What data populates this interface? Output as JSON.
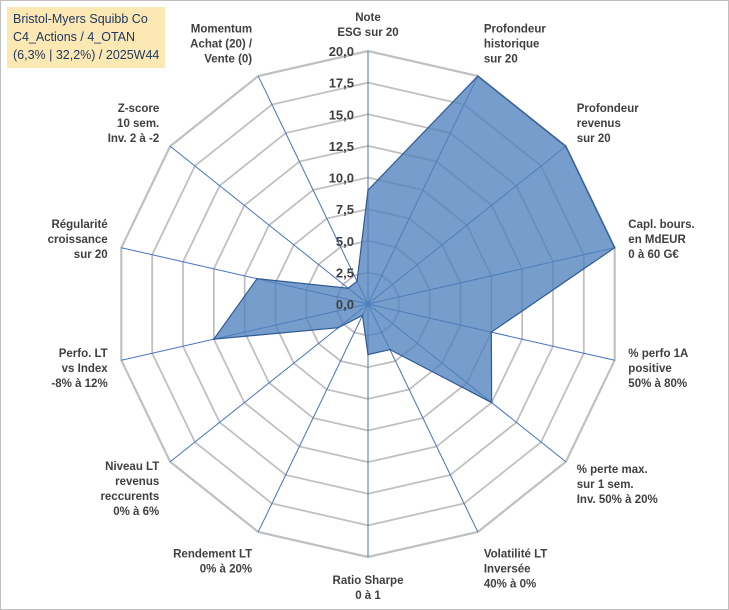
{
  "title": {
    "line1": "Bristol-Myers Squibb Co",
    "line2": "C4_Actions / 4_OTAN",
    "line3": "(6,3% | 32,2%) / 2025W44"
  },
  "colors": {
    "fill": "#4f81bd",
    "stroke": "#2e5b94",
    "spoke": "#4472c4",
    "grid": "#c0c0c0",
    "title_bg": "#fce8b2",
    "title_text": "#1f3864"
  },
  "chart_data": {
    "type": "radar",
    "range": [
      0,
      20
    ],
    "ticks": [
      "0,0",
      "2,5",
      "5,0",
      "7,5",
      "10,0",
      "12,5",
      "15,0",
      "17,5",
      "20,0"
    ],
    "axes": [
      {
        "label": [
          "Note",
          "ESG sur 20"
        ],
        "value": 9.0
      },
      {
        "label": [
          "Profondeur",
          "historique",
          "sur 20"
        ],
        "value": 20.0
      },
      {
        "label": [
          "Profondeur",
          "revenus",
          "sur 20"
        ],
        "value": 20.0
      },
      {
        "label": [
          "Capl. bours.",
          "en MdEUR",
          "0 à 60 G€"
        ],
        "value": 20.0
      },
      {
        "label": [
          "% perfo 1A",
          "positive",
          "50% à 80%"
        ],
        "value": 10.0
      },
      {
        "label": [
          "% perte max.",
          "sur 1 sem.",
          "Inv. 50% à 20%"
        ],
        "value": 12.5
      },
      {
        "label": [
          "Volatilité LT",
          "Inversée",
          "40% à 0%"
        ],
        "value": 4.0
      },
      {
        "label": [
          "Ratio Sharpe",
          "0 à 1"
        ],
        "value": 4.0
      },
      {
        "label": [
          "Rendement LT",
          "0% à 20%"
        ],
        "value": 1.0
      },
      {
        "label": [
          "Niveau LT",
          "revenus",
          "reccurents",
          "0% à 6%"
        ],
        "value": 3.0
      },
      {
        "label": [
          "Perfo. LT",
          "vs Index",
          "-8% à 12%"
        ],
        "value": 12.5
      },
      {
        "label": [
          "Régularité",
          "croissance",
          "sur 20"
        ],
        "value": 9.0
      },
      {
        "label": [
          "Z-score",
          "10 sem.",
          "Inv. 2 à -2"
        ],
        "value": 2.0
      },
      {
        "label": [
          "Momentum",
          "Achat (20) /",
          "Vente (0)"
        ],
        "value": 2.0
      }
    ]
  }
}
